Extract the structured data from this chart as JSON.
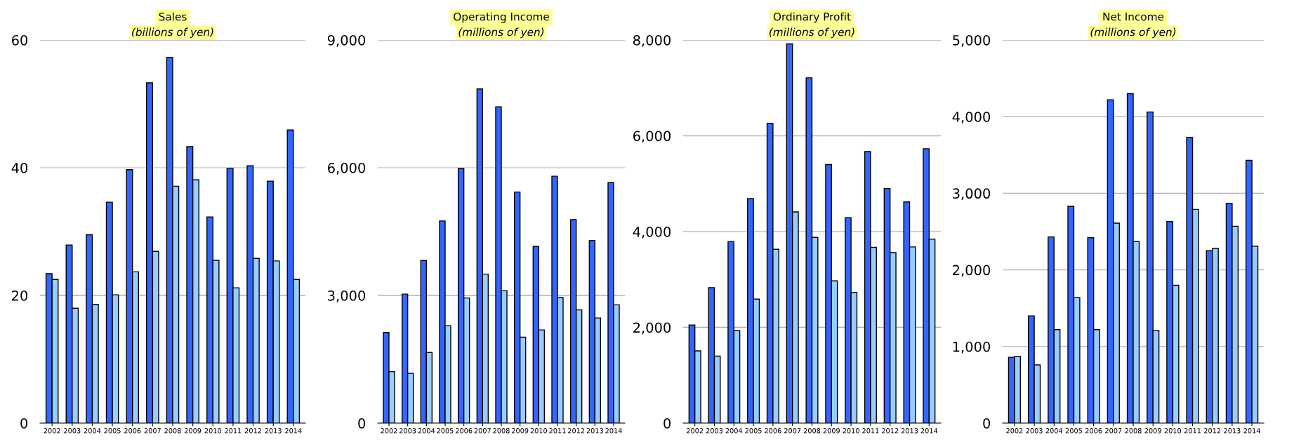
{
  "chart_data": [
    {
      "type": "bar",
      "title": "Sales",
      "subtitle": "(billions of yen)",
      "categories": [
        "2002",
        "2003",
        "2004",
        "2005",
        "2006",
        "2007",
        "2008",
        "2009",
        "2010",
        "2011",
        "2012",
        "2013",
        "2014"
      ],
      "series": [
        {
          "color": "#3366ff",
          "values": [
            23.4,
            27.9,
            29.5,
            34.6,
            39.7,
            53.3,
            57.3,
            43.3,
            32.3,
            39.9,
            40.3,
            37.9,
            45.9
          ]
        },
        {
          "color": "#99ccff",
          "values": [
            22.5,
            18.0,
            18.6,
            20.1,
            23.7,
            26.9,
            37.1,
            38.1,
            25.5,
            21.2,
            25.8,
            25.4,
            22.5
          ]
        }
      ],
      "ylim": [
        0,
        60
      ],
      "yticks": [
        0,
        20,
        40,
        60
      ],
      "grid": "y"
    },
    {
      "type": "bar",
      "title": "Operating Income",
      "subtitle": "(millions of yen)",
      "categories": [
        "2002",
        "2003",
        "2004",
        "2005",
        "2006",
        "2007",
        "2008",
        "2009",
        "2010",
        "2011",
        "2012",
        "2013",
        "2014"
      ],
      "series": [
        {
          "color": "#3366ff",
          "values": [
            2130,
            3030,
            3820,
            4750,
            5980,
            7850,
            7430,
            5430,
            4150,
            5800,
            4780,
            4290,
            5650
          ]
        },
        {
          "color": "#99ccff",
          "values": [
            1210,
            1170,
            1660,
            2290,
            2940,
            3500,
            3110,
            2020,
            2190,
            2950,
            2660,
            2470,
            2780
          ]
        }
      ],
      "ylim": [
        0,
        9000
      ],
      "yticks": [
        0,
        {
          "value": 3000,
          "label": "3,000"
        },
        {
          "value": 6000,
          "label": "6,000"
        },
        {
          "value": 9000,
          "label": "9,000"
        }
      ],
      "grid": "y"
    },
    {
      "type": "bar",
      "title": "Ordinary Profit",
      "subtitle": "(millions of yen)",
      "categories": [
        "2002",
        "2003",
        "2004",
        "2005",
        "2006",
        "2007",
        "2008",
        "2009",
        "2010",
        "2011",
        "2012",
        "2013",
        "2014"
      ],
      "series": [
        {
          "color": "#3366ff",
          "values": [
            2050,
            2830,
            3790,
            4690,
            6260,
            7920,
            7210,
            5400,
            4290,
            5670,
            4900,
            4620,
            5730
          ]
        },
        {
          "color": "#99ccff",
          "values": [
            1510,
            1400,
            1930,
            2590,
            3630,
            4410,
            3880,
            2970,
            2730,
            3670,
            3560,
            3680,
            3840
          ]
        }
      ],
      "ylim": [
        0,
        8000
      ],
      "yticks": [
        0,
        {
          "value": 2000,
          "label": "2,000"
        },
        {
          "value": 4000,
          "label": "4,000"
        },
        {
          "value": 6000,
          "label": "6,000"
        },
        {
          "value": 8000,
          "label": "8,000"
        }
      ],
      "grid": "y"
    },
    {
      "type": "bar",
      "title": "Net Income",
      "subtitle": "(millions of yen)",
      "categories": [
        "2002",
        "2003",
        "2004",
        "2005",
        "2006",
        "2007",
        "2008",
        "2009",
        "2010",
        "2011",
        "2012",
        "2013",
        "2014"
      ],
      "series": [
        {
          "color": "#3366ff",
          "values": [
            860,
            1400,
            2430,
            2830,
            2420,
            4220,
            4300,
            4060,
            2630,
            3730,
            2250,
            2870,
            3430
          ]
        },
        {
          "color": "#99ccff",
          "values": [
            870,
            760,
            1220,
            1640,
            1220,
            2610,
            2370,
            1210,
            1800,
            2790,
            2280,
            2570,
            2310
          ]
        }
      ],
      "ylim": [
        0,
        5000
      ],
      "yticks": [
        0,
        {
          "value": 1000,
          "label": "1,000"
        },
        {
          "value": 2000,
          "label": "2,000"
        },
        {
          "value": 3000,
          "label": "3,000"
        },
        {
          "value": 4000,
          "label": "4,000"
        },
        {
          "value": 5000,
          "label": "5,000"
        }
      ],
      "grid": "y"
    }
  ]
}
